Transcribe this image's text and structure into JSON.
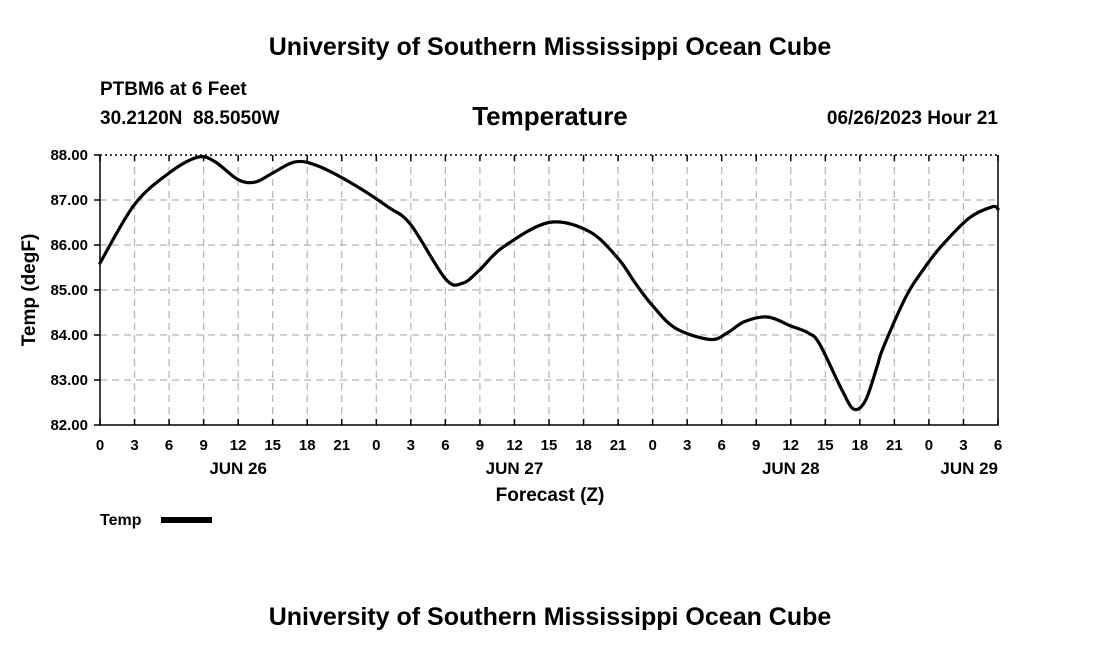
{
  "header": {
    "title_top": "University of Southern Mississippi Ocean Cube",
    "station": "PTBM6 at 6 Feet",
    "coords": "30.2120N  88.5050W",
    "chart_title": "Temperature",
    "timestamp": "06/26/2023 Hour 21"
  },
  "footer": {
    "title_bottom": "University of Southern Mississippi Ocean Cube"
  },
  "colors": {
    "line": "#000000",
    "grid": "#b4b4b4",
    "background": "#ffffff"
  },
  "chart_data": {
    "type": "line",
    "title": "Temperature",
    "xlabel": "Forecast (Z)",
    "ylabel": "Temp (degF)",
    "xlim": [
      0,
      78
    ],
    "ylim": [
      82,
      88
    ],
    "yticks": [
      "82.00",
      "83.00",
      "84.00",
      "85.00",
      "86.00",
      "87.00",
      "88.00"
    ],
    "xtick_labels": [
      "0",
      "3",
      "6",
      "9",
      "12",
      "15",
      "18",
      "21",
      "0",
      "3",
      "6",
      "9",
      "12",
      "15",
      "18",
      "21",
      "0",
      "3",
      "6",
      "9",
      "12",
      "15",
      "18",
      "21",
      "0",
      "3",
      "6"
    ],
    "day_labels": [
      {
        "label": "JUN 26",
        "hour": 12
      },
      {
        "label": "JUN 27",
        "hour": 36
      },
      {
        "label": "JUN 28",
        "hour": 60
      },
      {
        "label": "JUN 29",
        "hour": 78
      }
    ],
    "grid": true,
    "legend": "bottom-left",
    "series": [
      {
        "name": "Temp",
        "x": [
          0,
          3,
          6,
          8.5,
          10,
          12,
          13.5,
          15,
          17,
          19,
          22,
          25,
          27,
          30,
          31.5,
          33,
          35,
          39,
          42.5,
          45,
          46.5,
          48,
          50,
          53,
          54.5,
          56,
          58,
          60,
          61.5,
          62.5,
          64.5,
          65.5,
          66.5,
          67.5,
          68,
          70,
          71.5,
          73,
          75.5,
          77.5,
          78
        ],
        "y": [
          85.6,
          86.9,
          87.6,
          87.95,
          87.85,
          87.45,
          87.4,
          87.6,
          87.85,
          87.75,
          87.35,
          86.85,
          86.45,
          85.25,
          85.15,
          85.45,
          85.95,
          86.5,
          86.3,
          85.7,
          85.15,
          84.65,
          84.15,
          83.9,
          84.05,
          84.3,
          84.4,
          84.2,
          84.05,
          83.8,
          82.75,
          82.35,
          82.55,
          83.3,
          83.7,
          84.85,
          85.45,
          85.95,
          86.6,
          86.85,
          86.8
        ]
      }
    ]
  }
}
